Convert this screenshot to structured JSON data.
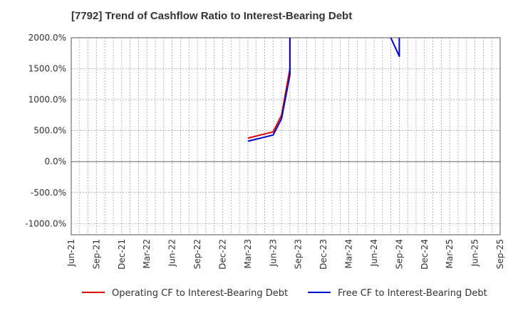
{
  "chart_data": {
    "type": "line",
    "title": "[7792]  Trend of Cashflow Ratio to Interest-Bearing Debt",
    "xlabel": "",
    "ylabel": "",
    "x_ticks": [
      "Jun-21",
      "Sep-21",
      "Dec-21",
      "Mar-22",
      "Jun-22",
      "Sep-22",
      "Dec-22",
      "Mar-23",
      "Jun-23",
      "Sep-23",
      "Dec-23",
      "Mar-24",
      "Jun-24",
      "Sep-24",
      "Dec-24",
      "Mar-25",
      "Jun-25",
      "Sep-25"
    ],
    "y_ticks": [
      2000,
      1500,
      1000,
      500,
      0,
      -500,
      -1000
    ],
    "y_tick_labels": [
      "2000.0%",
      "1500.0%",
      "1000.0%",
      "500.0%",
      "0.0%",
      "-500.0%",
      "-1000.0%"
    ],
    "ylim": [
      -1180,
      2000
    ],
    "grid": true,
    "legend_position": "bottom",
    "series": [
      {
        "name": "Operating CF to Interest-Bearing Debt",
        "color": "#e00000",
        "points": [
          {
            "x": "Mar-23",
            "y": 380
          },
          {
            "x": "Jun-23",
            "y": 480
          },
          {
            "x": "Jul-23",
            "y": 750
          },
          {
            "x": "Aug-23",
            "y": 1500
          },
          {
            "x": "Aug-23",
            "y": 2000
          }
        ]
      },
      {
        "name": "Free CF to Interest-Bearing Debt",
        "color": "#0000cc",
        "points": [
          {
            "x": "Mar-23",
            "y": 330
          },
          {
            "x": "Jun-23",
            "y": 430
          },
          {
            "x": "Jul-23",
            "y": 690
          },
          {
            "x": "Aug-23",
            "y": 1400
          },
          {
            "x": "Aug-23",
            "y": 2000
          },
          {
            "x": null,
            "y": null
          },
          {
            "x": "Aug-24",
            "y": 2000
          },
          {
            "x": "Sep-24",
            "y": 1700
          },
          {
            "x": "Sep-24",
            "y": 2000
          }
        ]
      }
    ]
  }
}
